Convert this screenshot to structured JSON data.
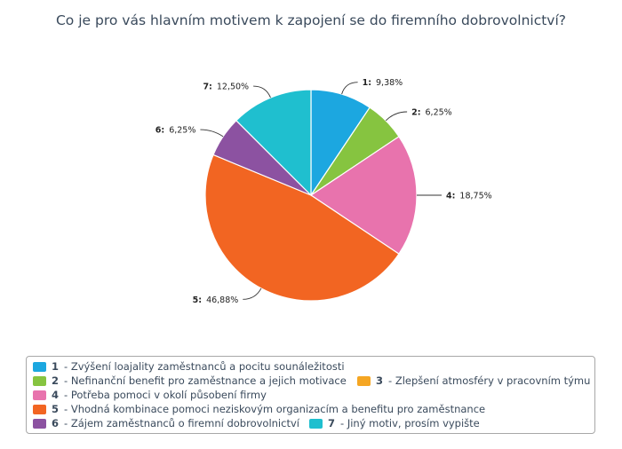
{
  "chart_data": {
    "type": "pie",
    "title": "Co je pro vás hlavním motivem k zapojení se do firemního dobrovolnictví?",
    "slices": [
      {
        "id": "1",
        "value": 9.38,
        "value_label": "9,38%",
        "color": "#1ca7e0",
        "legend": "- Zvýšení loajality zaměstnanců a pocitu sounáležitosti"
      },
      {
        "id": "2",
        "value": 6.25,
        "value_label": "6,25%",
        "color": "#86c440",
        "legend": "- Nefinanční benefit pro zaměstnance a jejich motivace"
      },
      {
        "id": "3",
        "value": 0,
        "value_label": "",
        "color": "#f5a623",
        "legend": "- Zlepšení atmosféry v pracovním týmu"
      },
      {
        "id": "4",
        "value": 18.75,
        "value_label": "18,75%",
        "color": "#e873ad",
        "legend": "- Potřeba pomoci v okolí působení firmy"
      },
      {
        "id": "5",
        "value": 46.88,
        "value_label": "46,88%",
        "color": "#f26522",
        "legend": "- Vhodná kombinace pomoci neziskovým organizacím a benefitu pro zaměstnance"
      },
      {
        "id": "6",
        "value": 6.25,
        "value_label": "6,25%",
        "color": "#8c52a1",
        "legend": "- Zájem zaměstnanců o firemní dobrovolnictví"
      },
      {
        "id": "7",
        "value": 12.5,
        "value_label": "12,50%",
        "color": "#1fbfcf",
        "legend": "- Jiný motiv, prosím vypište"
      }
    ],
    "legend_placement": "bottom"
  }
}
